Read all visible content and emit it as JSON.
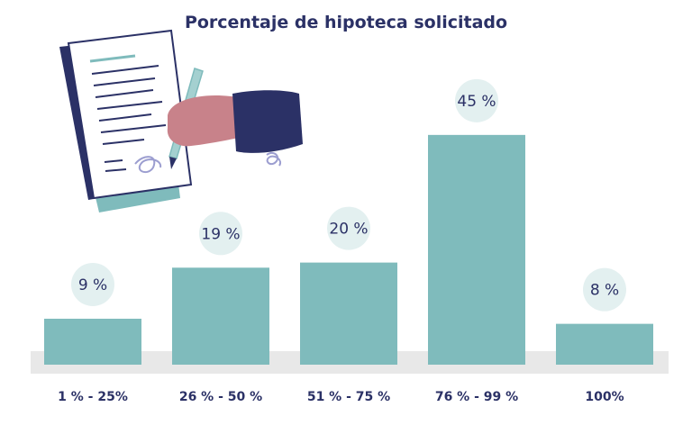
{
  "chart_data": {
    "type": "bar",
    "title": "Porcentaje de hipoteca solicitado",
    "categories": [
      "1 % - 25%",
      "26 % - 50 %",
      "51 % - 75 %",
      "76 % - 99 %",
      "100%"
    ],
    "values": [
      9,
      19,
      20,
      45,
      8
    ],
    "value_labels": [
      "9 %",
      "19 %",
      "20 %",
      "45 %",
      "8 %"
    ],
    "ylim": [
      0,
      45
    ],
    "grid": false,
    "colors": {
      "bar": "#7fbbbc",
      "label_bubble": "#e3f0f0",
      "baseline_band": "#e8e8e8",
      "text": "#2b3166"
    }
  }
}
